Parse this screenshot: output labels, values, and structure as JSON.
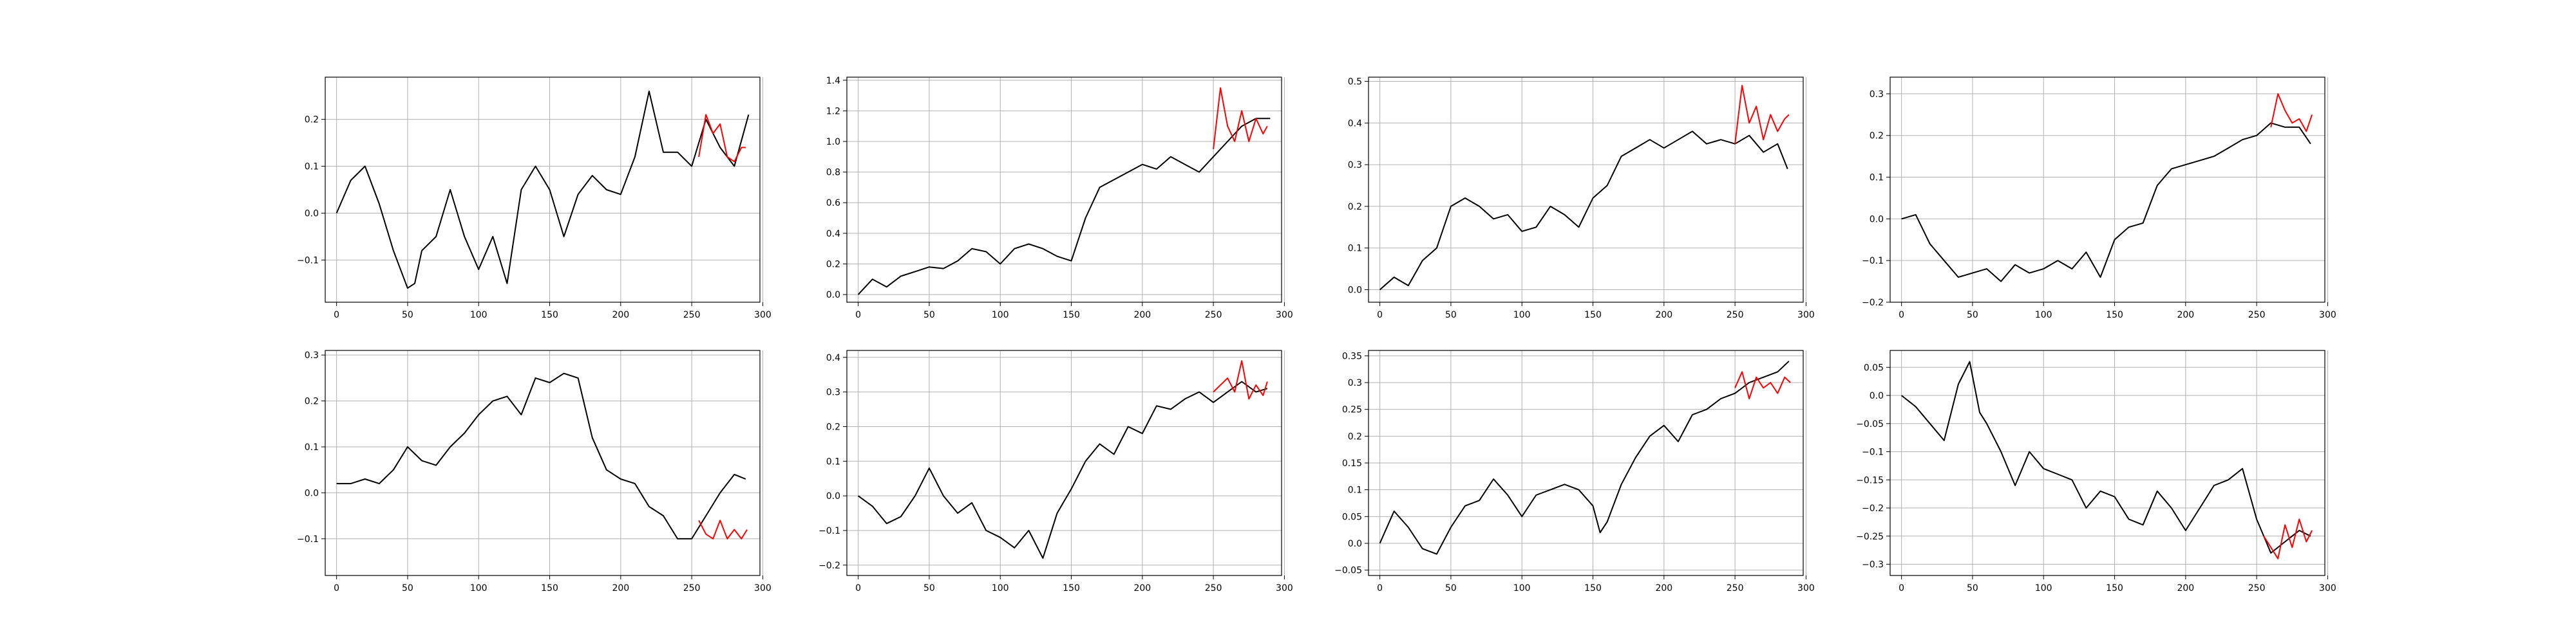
{
  "chart_data": [
    {
      "type": "line",
      "xlim": [
        -8,
        298
      ],
      "ylim": [
        -0.19,
        0.29
      ],
      "xticks": [
        0,
        50,
        100,
        150,
        200,
        250,
        300
      ],
      "yticks": [
        -0.1,
        0.0,
        0.1,
        0.2
      ],
      "grid": true,
      "x": [
        0,
        10,
        20,
        30,
        40,
        50,
        55,
        60,
        70,
        80,
        90,
        100,
        110,
        120,
        130,
        140,
        150,
        160,
        170,
        180,
        190,
        200,
        210,
        220,
        230,
        240,
        250,
        260,
        270,
        280,
        290
      ],
      "series": [
        {
          "color": "#000000",
          "values": [
            0.0,
            0.07,
            0.1,
            0.02,
            -0.08,
            -0.16,
            -0.15,
            -0.08,
            -0.05,
            0.05,
            -0.05,
            -0.12,
            -0.05,
            -0.15,
            0.05,
            0.1,
            0.05,
            -0.05,
            0.04,
            0.08,
            0.05,
            0.04,
            0.12,
            0.26,
            0.13,
            0.13,
            0.1,
            0.2,
            0.14,
            0.1,
            0.21
          ]
        },
        {
          "color": "#ff0000",
          "x": [
            255,
            260,
            265,
            270,
            275,
            280,
            285,
            288
          ],
          "values": [
            0.12,
            0.21,
            0.17,
            0.19,
            0.12,
            0.11,
            0.14,
            0.14
          ]
        }
      ]
    },
    {
      "type": "line",
      "xlim": [
        -8,
        298
      ],
      "ylim": [
        -0.05,
        1.42
      ],
      "xticks": [
        0,
        50,
        100,
        150,
        200,
        250,
        300
      ],
      "yticks": [
        0.0,
        0.2,
        0.4,
        0.6,
        0.8,
        1.0,
        1.2,
        1.4
      ],
      "grid": true,
      "x": [
        0,
        10,
        20,
        30,
        40,
        50,
        60,
        70,
        80,
        90,
        100,
        110,
        120,
        130,
        140,
        150,
        160,
        170,
        180,
        190,
        200,
        210,
        220,
        230,
        240,
        250,
        260,
        270,
        280,
        290
      ],
      "series": [
        {
          "color": "#000000",
          "values": [
            0.0,
            0.1,
            0.05,
            0.12,
            0.15,
            0.18,
            0.17,
            0.22,
            0.3,
            0.28,
            0.2,
            0.3,
            0.33,
            0.3,
            0.25,
            0.22,
            0.5,
            0.7,
            0.75,
            0.8,
            0.85,
            0.82,
            0.9,
            0.85,
            0.8,
            0.9,
            1.0,
            1.1,
            1.15,
            1.15
          ]
        },
        {
          "color": "#ff0000",
          "x": [
            250,
            255,
            260,
            265,
            270,
            275,
            280,
            285,
            288
          ],
          "values": [
            0.95,
            1.35,
            1.1,
            1.0,
            1.2,
            1.0,
            1.15,
            1.05,
            1.1
          ]
        }
      ]
    },
    {
      "type": "line",
      "xlim": [
        -8,
        298
      ],
      "ylim": [
        -0.03,
        0.51
      ],
      "xticks": [
        0,
        50,
        100,
        150,
        200,
        250,
        300
      ],
      "yticks": [
        0.0,
        0.1,
        0.2,
        0.3,
        0.4,
        0.5
      ],
      "grid": true,
      "x": [
        0,
        10,
        20,
        30,
        40,
        50,
        60,
        70,
        80,
        90,
        100,
        110,
        120,
        130,
        140,
        150,
        160,
        170,
        180,
        190,
        200,
        210,
        220,
        230,
        240,
        250,
        260,
        270,
        280,
        287
      ],
      "series": [
        {
          "color": "#000000",
          "values": [
            0.0,
            0.03,
            0.01,
            0.07,
            0.1,
            0.2,
            0.22,
            0.2,
            0.17,
            0.18,
            0.14,
            0.15,
            0.2,
            0.18,
            0.15,
            0.22,
            0.25,
            0.32,
            0.34,
            0.36,
            0.34,
            0.36,
            0.38,
            0.35,
            0.36,
            0.35,
            0.37,
            0.33,
            0.35,
            0.29
          ]
        },
        {
          "color": "#ff0000",
          "x": [
            250,
            255,
            260,
            265,
            270,
            275,
            280,
            285,
            288
          ],
          "values": [
            0.35,
            0.49,
            0.4,
            0.44,
            0.36,
            0.42,
            0.38,
            0.41,
            0.42
          ]
        }
      ]
    },
    {
      "type": "line",
      "xlim": [
        -8,
        298
      ],
      "ylim": [
        -0.2,
        0.34
      ],
      "xticks": [
        0,
        50,
        100,
        150,
        200,
        250,
        300
      ],
      "yticks": [
        -0.2,
        -0.1,
        0.0,
        0.1,
        0.2,
        0.3
      ],
      "grid": true,
      "x": [
        0,
        10,
        20,
        30,
        40,
        50,
        60,
        70,
        80,
        90,
        100,
        110,
        120,
        130,
        140,
        150,
        160,
        170,
        180,
        190,
        200,
        210,
        220,
        230,
        240,
        250,
        260,
        270,
        280,
        288
      ],
      "series": [
        {
          "color": "#000000",
          "values": [
            0.0,
            0.01,
            -0.06,
            -0.1,
            -0.14,
            -0.13,
            -0.12,
            -0.15,
            -0.11,
            -0.13,
            -0.12,
            -0.1,
            -0.12,
            -0.08,
            -0.14,
            -0.05,
            -0.02,
            -0.01,
            0.08,
            0.12,
            0.13,
            0.14,
            0.15,
            0.17,
            0.19,
            0.2,
            0.23,
            0.22,
            0.22,
            0.18
          ]
        },
        {
          "color": "#ff0000",
          "x": [
            260,
            265,
            270,
            275,
            280,
            285,
            289
          ],
          "values": [
            0.22,
            0.3,
            0.26,
            0.23,
            0.24,
            0.21,
            0.25
          ]
        }
      ]
    },
    {
      "type": "line",
      "xlim": [
        -8,
        298
      ],
      "ylim": [
        -0.18,
        0.31
      ],
      "xticks": [
        0,
        50,
        100,
        150,
        200,
        250,
        300
      ],
      "yticks": [
        -0.1,
        0.0,
        0.1,
        0.2,
        0.3
      ],
      "grid": true,
      "x": [
        0,
        10,
        20,
        30,
        40,
        50,
        60,
        70,
        80,
        90,
        100,
        110,
        120,
        130,
        140,
        150,
        160,
        170,
        180,
        190,
        200,
        210,
        220,
        230,
        240,
        250,
        260,
        270,
        280,
        288
      ],
      "series": [
        {
          "color": "#000000",
          "values": [
            0.02,
            0.02,
            0.03,
            0.02,
            0.05,
            0.1,
            0.07,
            0.06,
            0.1,
            0.13,
            0.17,
            0.2,
            0.21,
            0.17,
            0.25,
            0.24,
            0.26,
            0.25,
            0.12,
            0.05,
            0.03,
            0.02,
            -0.03,
            -0.05,
            -0.1,
            -0.1,
            -0.05,
            0.0,
            0.04,
            0.03
          ]
        },
        {
          "color": "#ff0000",
          "x": [
            255,
            260,
            265,
            270,
            275,
            280,
            285,
            289
          ],
          "values": [
            -0.06,
            -0.09,
            -0.1,
            -0.06,
            -0.1,
            -0.08,
            -0.1,
            -0.08
          ]
        }
      ]
    },
    {
      "type": "line",
      "xlim": [
        -8,
        298
      ],
      "ylim": [
        -0.23,
        0.42
      ],
      "xticks": [
        0,
        50,
        100,
        150,
        200,
        250,
        300
      ],
      "yticks": [
        -0.2,
        -0.1,
        0.0,
        0.1,
        0.2,
        0.3,
        0.4
      ],
      "grid": true,
      "x": [
        0,
        10,
        20,
        30,
        40,
        50,
        60,
        70,
        80,
        90,
        100,
        110,
        120,
        130,
        140,
        150,
        160,
        170,
        180,
        190,
        200,
        210,
        220,
        230,
        240,
        250,
        260,
        270,
        280,
        288
      ],
      "series": [
        {
          "color": "#000000",
          "values": [
            0.0,
            -0.03,
            -0.08,
            -0.06,
            0.0,
            0.08,
            0.0,
            -0.05,
            -0.02,
            -0.1,
            -0.12,
            -0.15,
            -0.1,
            -0.18,
            -0.05,
            0.02,
            0.1,
            0.15,
            0.12,
            0.2,
            0.18,
            0.26,
            0.25,
            0.28,
            0.3,
            0.27,
            0.3,
            0.33,
            0.3,
            0.31
          ]
        },
        {
          "color": "#ff0000",
          "x": [
            250,
            255,
            260,
            265,
            270,
            275,
            280,
            285,
            288
          ],
          "values": [
            0.3,
            0.32,
            0.34,
            0.3,
            0.39,
            0.28,
            0.32,
            0.29,
            0.33
          ]
        }
      ]
    },
    {
      "type": "line",
      "xlim": [
        -8,
        298
      ],
      "ylim": [
        -0.06,
        0.36
      ],
      "xticks": [
        0,
        50,
        100,
        150,
        200,
        250,
        300
      ],
      "yticks": [
        -0.05,
        0.0,
        0.05,
        0.1,
        0.15,
        0.2,
        0.25,
        0.3,
        0.35
      ],
      "grid": true,
      "x": [
        0,
        10,
        20,
        30,
        40,
        50,
        60,
        70,
        80,
        90,
        100,
        110,
        120,
        130,
        140,
        150,
        155,
        160,
        170,
        180,
        190,
        200,
        210,
        220,
        230,
        240,
        250,
        260,
        270,
        280,
        288
      ],
      "series": [
        {
          "color": "#000000",
          "values": [
            0.0,
            0.06,
            0.03,
            -0.01,
            -0.02,
            0.03,
            0.07,
            0.08,
            0.12,
            0.09,
            0.05,
            0.09,
            0.1,
            0.11,
            0.1,
            0.07,
            0.02,
            0.04,
            0.11,
            0.16,
            0.2,
            0.22,
            0.19,
            0.24,
            0.25,
            0.27,
            0.28,
            0.3,
            0.31,
            0.32,
            0.34
          ]
        },
        {
          "color": "#ff0000",
          "x": [
            250,
            255,
            260,
            265,
            270,
            275,
            280,
            285,
            289
          ],
          "values": [
            0.29,
            0.32,
            0.27,
            0.31,
            0.29,
            0.3,
            0.28,
            0.31,
            0.3
          ]
        }
      ]
    },
    {
      "type": "line",
      "xlim": [
        -8,
        298
      ],
      "ylim": [
        -0.32,
        0.08
      ],
      "xticks": [
        0,
        50,
        100,
        150,
        200,
        250,
        300
      ],
      "yticks": [
        -0.3,
        -0.25,
        -0.2,
        -0.15,
        -0.1,
        -0.05,
        0.0,
        0.05
      ],
      "grid": true,
      "x": [
        0,
        10,
        20,
        30,
        40,
        48,
        55,
        60,
        70,
        80,
        90,
        100,
        110,
        120,
        130,
        140,
        150,
        160,
        170,
        180,
        190,
        200,
        210,
        220,
        230,
        240,
        250,
        260,
        270,
        280,
        288
      ],
      "series": [
        {
          "color": "#000000",
          "values": [
            0.0,
            -0.02,
            -0.05,
            -0.08,
            0.02,
            0.06,
            -0.03,
            -0.05,
            -0.1,
            -0.16,
            -0.1,
            -0.13,
            -0.14,
            -0.15,
            -0.2,
            -0.17,
            -0.18,
            -0.22,
            -0.23,
            -0.17,
            -0.2,
            -0.24,
            -0.2,
            -0.16,
            -0.15,
            -0.13,
            -0.22,
            -0.28,
            -0.26,
            -0.24,
            -0.25
          ]
        },
        {
          "color": "#ff0000",
          "x": [
            255,
            260,
            265,
            270,
            275,
            280,
            285,
            289
          ],
          "values": [
            -0.25,
            -0.27,
            -0.29,
            -0.23,
            -0.27,
            -0.22,
            -0.26,
            -0.24
          ]
        }
      ]
    }
  ]
}
